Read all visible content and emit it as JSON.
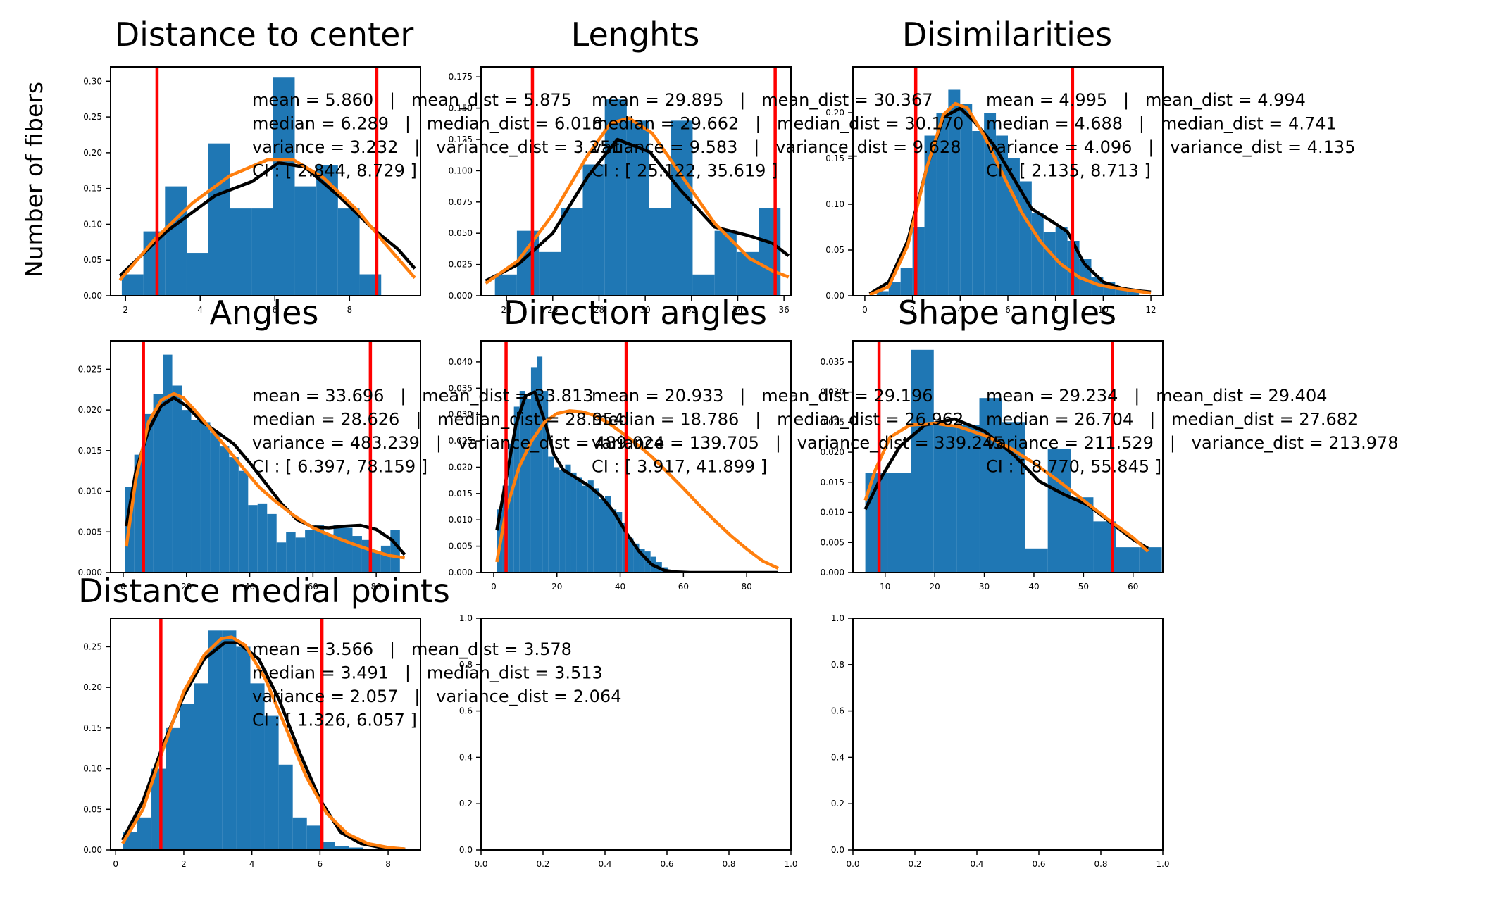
{
  "figure": {
    "ylabel": "Number of fibers",
    "colors": {
      "bars": "#1f77b4",
      "kde": "#000000",
      "fit": "#ff7f0e",
      "ci": "#ff0000"
    }
  },
  "chart_data": [
    {
      "type": "bar",
      "title": "Distance to center",
      "xlim": [
        1.6,
        9.9
      ],
      "ylim": [
        0,
        0.32
      ],
      "xticks": [
        2,
        4,
        6,
        8
      ],
      "xtick_labels": [
        "2",
        "4",
        "6",
        "8"
      ],
      "yticks": [
        0,
        0.05,
        0.1,
        0.15,
        0.2,
        0.25,
        0.3
      ],
      "ytick_labels": [
        "0.00",
        "0.05",
        "0.10",
        "0.15",
        "0.20",
        "0.25",
        "0.30"
      ],
      "bins": {
        "start": 1.9,
        "width": 0.579,
        "values": [
          0.03,
          0.09,
          0.153,
          0.06,
          0.213,
          0.122,
          0.122,
          0.305,
          0.153,
          0.183,
          0.122,
          0.03
        ]
      },
      "kde": {
        "x": [
          1.85,
          3.1,
          4.4,
          5.4,
          6.1,
          6.8,
          7.7,
          8.6,
          9.3,
          9.75
        ],
        "y": [
          0.028,
          0.09,
          0.14,
          0.16,
          0.186,
          0.18,
          0.14,
          0.095,
          0.065,
          0.038
        ]
      },
      "fit": {
        "x": [
          1.85,
          2.8,
          3.8,
          4.8,
          5.8,
          6.5,
          7.3,
          8.2,
          9.0,
          9.75
        ],
        "y": [
          0.022,
          0.08,
          0.13,
          0.168,
          0.19,
          0.19,
          0.165,
          0.12,
          0.07,
          0.025
        ]
      },
      "ci": [
        2.844,
        8.729
      ],
      "stats": [
        "mean = 5.860   |   mean_dist = 5.875",
        "median = 6.289   |   median_dist = 6.018",
        "variance = 3.232   |   variance_dist = 3.251",
        "CI : [ 2.844, 8.729 ]"
      ]
    },
    {
      "type": "bar",
      "title": "Lenghts",
      "xlim": [
        22.9,
        36.3
      ],
      "ylim": [
        0,
        0.183
      ],
      "xticks": [
        24,
        26,
        28,
        30,
        32,
        34,
        36
      ],
      "xtick_labels": [
        "24",
        "26",
        "28",
        "30",
        "32",
        "34",
        "36"
      ],
      "yticks": [
        0,
        0.025,
        0.05,
        0.075,
        0.1,
        0.125,
        0.15,
        0.175
      ],
      "ytick_labels": [
        "0.000",
        "0.025",
        "0.050",
        "0.075",
        "0.100",
        "0.125",
        "0.150",
        "0.175"
      ],
      "bins": {
        "start": 23.5,
        "width": 0.95,
        "values": [
          0.017,
          0.052,
          0.035,
          0.07,
          0.105,
          0.157,
          0.14,
          0.07,
          0.14,
          0.017,
          0.052,
          0.035,
          0.07
        ]
      },
      "kde": {
        "x": [
          23.1,
          24.5,
          26.0,
          27.5,
          28.8,
          30.2,
          31.5,
          33.0,
          34.5,
          35.5,
          36.2
        ],
        "y": [
          0.012,
          0.025,
          0.05,
          0.095,
          0.125,
          0.115,
          0.085,
          0.055,
          0.048,
          0.042,
          0.032
        ]
      },
      "fit": {
        "x": [
          23.1,
          24.5,
          26.0,
          27.5,
          28.5,
          29.3,
          30.3,
          31.5,
          33.0,
          34.5,
          35.5,
          36.2
        ],
        "y": [
          0.01,
          0.028,
          0.065,
          0.112,
          0.138,
          0.142,
          0.13,
          0.098,
          0.058,
          0.03,
          0.02,
          0.015
        ]
      },
      "ci": [
        25.122,
        35.619
      ],
      "stats": [
        "mean = 29.895   |   mean_dist = 30.367",
        "median = 29.662   |   median_dist = 30.170",
        "variance = 9.583   |   variance_dist = 9.628",
        "CI : [ 25.122, 35.619 ]"
      ]
    },
    {
      "type": "bar",
      "title": "Disimilarities",
      "xlim": [
        -0.5,
        12.5
      ],
      "ylim": [
        0,
        0.25
      ],
      "xticks": [
        0,
        2,
        4,
        6,
        8,
        10,
        12
      ],
      "xtick_labels": [
        "0",
        "2",
        "4",
        "6",
        "8",
        "10",
        "12"
      ],
      "yticks": [
        0,
        0.05,
        0.1,
        0.15,
        0.2
      ],
      "ytick_labels": [
        "0.00",
        "0.05",
        "0.10",
        "0.15",
        "0.20"
      ],
      "bins": {
        "start": 0.5,
        "width": 0.5,
        "values": [
          0.005,
          0.015,
          0.03,
          0.075,
          0.175,
          0.2,
          0.225,
          0.21,
          0.18,
          0.2,
          0.175,
          0.15,
          0.125,
          0.09,
          0.07,
          0.075,
          0.06,
          0.04,
          0.02,
          0.015,
          0.01,
          0.005
        ]
      },
      "kde": {
        "x": [
          0.2,
          1.0,
          1.8,
          2.6,
          3.3,
          4.0,
          4.6,
          5.4,
          6.2,
          7.0,
          7.8,
          8.5,
          9.2,
          10.0,
          10.8,
          11.6,
          12.0
        ],
        "y": [
          0.002,
          0.015,
          0.06,
          0.14,
          0.195,
          0.205,
          0.19,
          0.165,
          0.13,
          0.095,
          0.082,
          0.07,
          0.035,
          0.015,
          0.008,
          0.005,
          0.004
        ]
      },
      "fit": {
        "x": [
          0.2,
          1.0,
          1.8,
          2.6,
          3.3,
          3.8,
          4.3,
          5.0,
          5.8,
          6.6,
          7.4,
          8.2,
          9.0,
          9.8,
          10.6,
          11.4,
          12.0
        ],
        "y": [
          0.001,
          0.01,
          0.055,
          0.14,
          0.198,
          0.21,
          0.205,
          0.175,
          0.132,
          0.09,
          0.058,
          0.035,
          0.02,
          0.012,
          0.008,
          0.005,
          0.003
        ]
      },
      "ci": [
        2.135,
        8.713
      ],
      "stats": [
        "mean = 4.995   |   mean_dist = 4.994",
        "median = 4.688   |   median_dist = 4.741",
        "variance = 4.096   |   variance_dist = 4.135",
        "CI : [ 2.135, 8.713 ]"
      ]
    },
    {
      "type": "bar",
      "title": "Angles",
      "xlim": [
        -4.0,
        94.0
      ],
      "ylim": [
        0,
        0.0285
      ],
      "xticks": [
        0,
        20,
        40,
        60,
        80
      ],
      "xtick_labels": [
        "0",
        "20",
        "40",
        "60",
        "80"
      ],
      "yticks": [
        0,
        0.005,
        0.01,
        0.015,
        0.02,
        0.025
      ],
      "ytick_labels": [
        "0.000",
        "0.005",
        "0.010",
        "0.015",
        "0.020",
        "0.025"
      ],
      "bins": {
        "start": 0.5,
        "width": 3.0,
        "values": [
          0.0105,
          0.0145,
          0.0195,
          0.022,
          0.0268,
          0.023,
          0.02,
          0.0188,
          0.0185,
          0.0172,
          0.0155,
          0.0142,
          0.0125,
          0.0083,
          0.0085,
          0.0072,
          0.0037,
          0.005,
          0.0043,
          0.0052,
          0.0058,
          0.0047,
          0.0058,
          0.0055,
          0.0045,
          0.004,
          0.0025,
          0.0033,
          0.0052
        ]
      },
      "kde": {
        "x": [
          1.0,
          4.0,
          8.0,
          12.0,
          16.0,
          20.0,
          25.0,
          30.0,
          35.0,
          40.0,
          45.0,
          50.0,
          55.0,
          60.0,
          65.0,
          70.0,
          75.0,
          80.0,
          85.0,
          89.0
        ],
        "y": [
          0.0057,
          0.0125,
          0.0175,
          0.0205,
          0.0215,
          0.0205,
          0.0185,
          0.0172,
          0.0158,
          0.0135,
          0.011,
          0.0085,
          0.0065,
          0.0056,
          0.0055,
          0.0057,
          0.0058,
          0.0053,
          0.004,
          0.0022
        ]
      },
      "fit": {
        "x": [
          1.0,
          4.0,
          8.0,
          12.0,
          16.0,
          19.0,
          23.0,
          28.0,
          33.0,
          38.0,
          43.0,
          48.0,
          54.0,
          60.0,
          66.0,
          72.0,
          78.0,
          84.0,
          89.0
        ],
        "y": [
          0.0032,
          0.0115,
          0.0185,
          0.0212,
          0.022,
          0.0215,
          0.0198,
          0.0175,
          0.0152,
          0.0128,
          0.0105,
          0.0088,
          0.007,
          0.0055,
          0.0045,
          0.0036,
          0.0028,
          0.0021,
          0.0018
        ]
      },
      "ci": [
        6.397,
        78.159
      ],
      "stats": [
        "mean = 33.696   |   mean_dist = 33.813",
        "median = 28.626   |   median_dist = 28.954",
        "variance = 483.239   |   variance_dist = 489.024",
        "CI : [ 6.397, 78.159 ]"
      ]
    },
    {
      "type": "bar",
      "title": "Direction angles",
      "xlim": [
        -4.0,
        94.0
      ],
      "ylim": [
        0,
        0.044
      ],
      "xticks": [
        0,
        20,
        40,
        60,
        80
      ],
      "xtick_labels": [
        "0",
        "20",
        "40",
        "60",
        "80"
      ],
      "yticks": [
        0,
        0.005,
        0.01,
        0.015,
        0.02,
        0.025,
        0.03,
        0.035,
        0.04
      ],
      "ytick_labels": [
        "0.000",
        "0.005",
        "0.010",
        "0.015",
        "0.020",
        "0.025",
        "0.030",
        "0.035",
        "0.040"
      ],
      "bins": {
        "start": 1.0,
        "width": 1.8,
        "values": [
          0.012,
          0.0165,
          0.0245,
          0.0315,
          0.0345,
          0.033,
          0.039,
          0.041,
          0.0345,
          0.022,
          0.02,
          0.0195,
          0.0205,
          0.019,
          0.018,
          0.0165,
          0.0175,
          0.016,
          0.014,
          0.0145,
          0.012,
          0.0115,
          0.0095,
          0.0065,
          0.0055,
          0.0045,
          0.004,
          0.003,
          0.002,
          0.001,
          0.0005
        ]
      },
      "kde": {
        "x": [
          1.0,
          4.0,
          7.0,
          10.0,
          13.0,
          16.0,
          19.0,
          22.0,
          26.0,
          30.0,
          34.0,
          38.0,
          42.0,
          46.0,
          50.0,
          54.0,
          58.0,
          62.0,
          70.0,
          80.0,
          90.0
        ],
        "y": [
          0.008,
          0.018,
          0.028,
          0.0335,
          0.0343,
          0.029,
          0.0225,
          0.0195,
          0.018,
          0.0165,
          0.0145,
          0.0115,
          0.0075,
          0.004,
          0.0015,
          0.0004,
          0.0001,
          0.0,
          0.0,
          0.0,
          0.0
        ]
      },
      "fit": {
        "x": [
          1.0,
          4.0,
          8.0,
          12.0,
          16.0,
          20.0,
          24.0,
          28.0,
          32.0,
          36.0,
          40.0,
          45.0,
          50.0,
          55.0,
          60.0,
          65.0,
          70.0,
          75.0,
          80.0,
          85.0,
          90.0
        ],
        "y": [
          0.002,
          0.012,
          0.02,
          0.025,
          0.0285,
          0.0302,
          0.0307,
          0.0305,
          0.0298,
          0.0285,
          0.0268,
          0.0245,
          0.022,
          0.019,
          0.016,
          0.0128,
          0.0098,
          0.007,
          0.0045,
          0.0022,
          0.0008
        ]
      },
      "ci": [
        3.917,
        41.899
      ],
      "stats": [
        "mean = 20.933   |   mean_dist = 29.196",
        "median = 18.786   |   median_dist = 26.962",
        "variance = 139.705   |   variance_dist = 339.245",
        "CI : [ 3.917, 41.899 ]"
      ]
    },
    {
      "type": "bar",
      "title": "Shape angles",
      "xlim": [
        3.5,
        66.0
      ],
      "ylim": [
        0,
        0.0385
      ],
      "xticks": [
        10,
        20,
        30,
        40,
        50,
        60
      ],
      "xtick_labels": [
        "10",
        "20",
        "30",
        "40",
        "50",
        "60"
      ],
      "yticks": [
        0,
        0.005,
        0.01,
        0.015,
        0.02,
        0.025,
        0.03,
        0.035
      ],
      "ytick_labels": [
        "0.000",
        "0.005",
        "0.010",
        "0.015",
        "0.020",
        "0.025",
        "0.030",
        "0.035"
      ],
      "bins": {
        "start": 6.0,
        "width": 4.6,
        "values": [
          0.0165,
          0.0165,
          0.037,
          0.0245,
          0.0245,
          0.029,
          0.025,
          0.004,
          0.0205,
          0.0125,
          0.0085,
          0.0042,
          0.0042
        ]
      },
      "kde": {
        "x": [
          6.0,
          9.0,
          13.0,
          18.0,
          24.0,
          30.0,
          36.0,
          41.0,
          46.0,
          51.0,
          56.0,
          60.0,
          63.0
        ],
        "y": [
          0.0105,
          0.0155,
          0.021,
          0.0245,
          0.0255,
          0.0235,
          0.0195,
          0.0152,
          0.013,
          0.0112,
          0.008,
          0.0055,
          0.004
        ]
      },
      "fit": {
        "x": [
          6.0,
          8.0,
          11.0,
          15.0,
          20.0,
          25.0,
          30.0,
          35.0,
          40.0,
          45.0,
          50.0,
          55.0,
          60.0,
          63.0
        ],
        "y": [
          0.012,
          0.017,
          0.0225,
          0.0245,
          0.0248,
          0.0242,
          0.0228,
          0.0208,
          0.0182,
          0.0152,
          0.012,
          0.0088,
          0.0058,
          0.0035
        ]
      },
      "ci": [
        8.77,
        55.845
      ],
      "stats": [
        "mean = 29.234   |   mean_dist = 29.404",
        "median = 26.704   |   median_dist = 27.682",
        "variance = 211.529   |   variance_dist = 213.978",
        "CI : [ 8.770, 55.845 ]"
      ]
    },
    {
      "type": "bar",
      "title": "Distance medial points",
      "xlim": [
        -0.15,
        8.95
      ],
      "ylim": [
        0,
        0.285
      ],
      "xticks": [
        0,
        2,
        4,
        6,
        8
      ],
      "xtick_labels": [
        "0",
        "2",
        "4",
        "6",
        "8"
      ],
      "yticks": [
        0,
        0.05,
        0.1,
        0.15,
        0.2,
        0.25
      ],
      "ytick_labels": [
        "0.00",
        "0.05",
        "0.10",
        "0.15",
        "0.20",
        "0.25"
      ],
      "bins": {
        "start": 0.22,
        "width": 0.415,
        "values": [
          0.022,
          0.04,
          0.1,
          0.15,
          0.18,
          0.205,
          0.27,
          0.27,
          0.25,
          0.205,
          0.165,
          0.105,
          0.04,
          0.03,
          0.01,
          0.005,
          0.003,
          0.001,
          0.0005,
          0.0003
        ]
      },
      "kde": {
        "x": [
          0.2,
          0.8,
          1.4,
          2.0,
          2.6,
          3.2,
          3.6,
          4.2,
          4.8,
          5.4,
          6.0,
          6.6,
          7.2,
          7.8,
          8.5
        ],
        "y": [
          0.012,
          0.06,
          0.13,
          0.19,
          0.235,
          0.255,
          0.255,
          0.235,
          0.185,
          0.12,
          0.062,
          0.022,
          0.008,
          0.003,
          0.001
        ]
      },
      "fit": {
        "x": [
          0.2,
          0.8,
          1.4,
          2.0,
          2.6,
          3.1,
          3.4,
          3.8,
          4.4,
          5.0,
          5.6,
          6.2,
          6.8,
          7.4,
          8.0,
          8.5
        ],
        "y": [
          0.008,
          0.05,
          0.125,
          0.195,
          0.24,
          0.26,
          0.262,
          0.252,
          0.21,
          0.15,
          0.09,
          0.045,
          0.02,
          0.008,
          0.003,
          0.001
        ]
      },
      "ci": [
        1.326,
        6.057
      ],
      "stats": [
        "mean = 3.566   |   mean_dist = 3.578",
        "median = 3.491   |   median_dist = 3.513",
        "variance = 2.057   |   variance_dist = 2.064",
        "CI : [ 1.326, 6.057 ]"
      ]
    },
    {
      "type": "empty",
      "xlim": [
        0,
        1
      ],
      "ylim": [
        0,
        1
      ],
      "xticks": [
        0,
        0.2,
        0.4,
        0.6,
        0.8,
        1.0
      ],
      "xtick_labels": [
        "0.0",
        "0.2",
        "0.4",
        "0.6",
        "0.8",
        "1.0"
      ],
      "yticks": [
        0,
        0.2,
        0.4,
        0.6,
        0.8,
        1.0
      ],
      "ytick_labels": [
        "0.0",
        "0.2",
        "0.4",
        "0.6",
        "0.8",
        "1.0"
      ]
    },
    {
      "type": "empty",
      "xlim": [
        0,
        1
      ],
      "ylim": [
        0,
        1
      ],
      "xticks": [
        0,
        0.2,
        0.4,
        0.6,
        0.8,
        1.0
      ],
      "xtick_labels": [
        "0.0",
        "0.2",
        "0.4",
        "0.6",
        "0.8",
        "1.0"
      ],
      "yticks": [
        0,
        0.2,
        0.4,
        0.6,
        0.8,
        1.0
      ],
      "ytick_labels": [
        "0.0",
        "0.2",
        "0.4",
        "0.6",
        "0.8",
        "1.0"
      ]
    }
  ]
}
